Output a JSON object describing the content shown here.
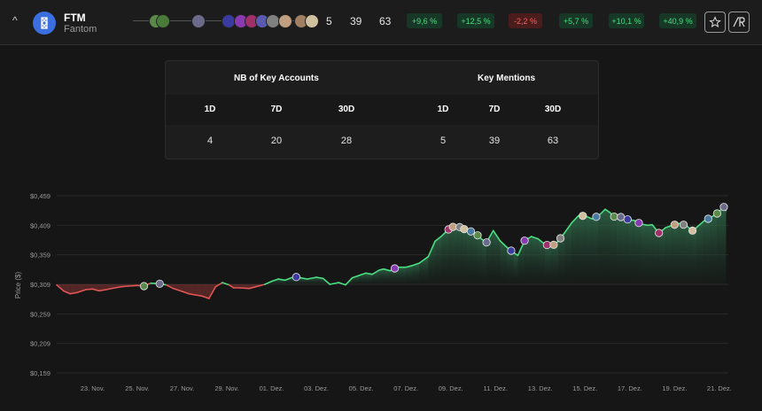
{
  "token": {
    "symbol": "FTM",
    "name": "Fantom"
  },
  "header_stats": {
    "key_accounts_30d": "5",
    "mentions_7d": "39",
    "mentions_30d": "63"
  },
  "price_changes": [
    {
      "value": "+9,6 %",
      "direction": "up"
    },
    {
      "value": "+12,5 %",
      "direction": "up"
    },
    {
      "value": "-2,2 %",
      "direction": "down"
    },
    {
      "value": "+5,7 %",
      "direction": "up"
    },
    {
      "value": "+10,1 %",
      "direction": "up"
    },
    {
      "value": "+40,9 %",
      "direction": "up"
    }
  ],
  "buttons": {
    "favorite_icon": "star-icon",
    "brand_icon": "ar-logo-icon"
  },
  "table": {
    "key_accounts": {
      "title": "NB of Key Accounts",
      "cols": [
        "1D",
        "7D",
        "30D"
      ],
      "vals": [
        "4",
        "20",
        "28"
      ]
    },
    "mentions": {
      "title": "Key Mentions",
      "cols": [
        "1D",
        "7D",
        "30D"
      ],
      "vals": [
        "5",
        "39",
        "63"
      ]
    }
  },
  "colors": {
    "up": "#4ade80",
    "down": "#e05555",
    "accent": "#3b6fe0"
  },
  "chart_data": {
    "type": "line",
    "ylabel": "Price ($)",
    "yticks": [
      "$0,459",
      "$0,409",
      "$0,359",
      "$0,309",
      "$0,259",
      "$0,209",
      "$0,159"
    ],
    "ytick_values": [
      0.459,
      0.409,
      0.359,
      0.309,
      0.259,
      0.209,
      0.159
    ],
    "ylim": [
      0.159,
      0.459
    ],
    "xticks": [
      "23. Nov.",
      "25. Nov.",
      "27. Nov.",
      "29. Nov.",
      "01. Dez.",
      "03. Dez.",
      "05. Dez.",
      "07. Dez.",
      "09. Dez.",
      "11. Dez.",
      "13. Dez.",
      "15. Dez.",
      "17. Dez.",
      "19. Dez.",
      "21. Dez."
    ],
    "baseline": 0.309,
    "grid": true,
    "series": [
      {
        "x": [
          21.4,
          21.7,
          22.0,
          22.3,
          22.7,
          23.0,
          23.3,
          23.6,
          24.0,
          24.3,
          24.6,
          25.0,
          25.3,
          25.6,
          26.0,
          26.3,
          26.6,
          27.0,
          27.3,
          27.6,
          27.9,
          28.2,
          28.5,
          28.8,
          29.1,
          29.3,
          29.6,
          30.0,
          30.3,
          30.7,
          31.0,
          31.3,
          31.6,
          32.0,
          32.3,
          32.6,
          33.0,
          33.3,
          33.6,
          34.0,
          34.3,
          34.6,
          34.9,
          35.2,
          35.5,
          35.8,
          36.0,
          36.3,
          36.6,
          37.0,
          37.3,
          37.6,
          38.0,
          38.3,
          38.6,
          38.9,
          39.0,
          39.3,
          39.5,
          39.7,
          40.0,
          40.2,
          40.4,
          40.6,
          40.9,
          41.2,
          41.5,
          41.8,
          42.0,
          42.3,
          42.6,
          42.9,
          43.2,
          43.5,
          43.8,
          44.1,
          44.4,
          44.7,
          45.0,
          45.3,
          45.6,
          45.9,
          46.1,
          46.4,
          46.6,
          46.9,
          47.2,
          47.5,
          47.8,
          48.0,
          48.3,
          48.6,
          48.9,
          49.2,
          49.5,
          49.8,
          50.0,
          50.3,
          50.6,
          50.9,
          51.2,
          51.3
        ],
        "y": [
          0.308,
          0.298,
          0.293,
          0.295,
          0.3,
          0.301,
          0.298,
          0.3,
          0.303,
          0.305,
          0.306,
          0.307,
          0.306,
          0.311,
          0.31,
          0.308,
          0.302,
          0.297,
          0.293,
          0.291,
          0.289,
          0.285,
          0.305,
          0.312,
          0.308,
          0.303,
          0.303,
          0.302,
          0.305,
          0.309,
          0.314,
          0.318,
          0.316,
          0.322,
          0.32,
          0.318,
          0.321,
          0.319,
          0.309,
          0.312,
          0.308,
          0.32,
          0.324,
          0.328,
          0.326,
          0.333,
          0.335,
          0.332,
          0.338,
          0.338,
          0.341,
          0.345,
          0.356,
          0.382,
          0.391,
          0.402,
          0.406,
          0.407,
          0.405,
          0.4,
          0.398,
          0.392,
          0.385,
          0.38,
          0.4,
          0.383,
          0.372,
          0.363,
          0.358,
          0.383,
          0.39,
          0.386,
          0.377,
          0.373,
          0.382,
          0.397,
          0.413,
          0.425,
          0.425,
          0.42,
          0.425,
          0.436,
          0.431,
          0.42,
          0.423,
          0.419,
          0.417,
          0.411,
          0.409,
          0.41,
          0.396,
          0.405,
          0.409,
          0.412,
          0.409,
          0.4,
          0.406,
          0.416,
          0.422,
          0.429,
          0.44,
          0.434
        ]
      }
    ],
    "avatar_events_x": [
      25.3,
      26.0,
      32.1,
      36.5,
      38.9,
      39.1,
      39.4,
      39.6,
      39.9,
      40.2,
      40.6,
      41.7,
      42.3,
      43.3,
      43.6,
      43.9,
      44.9,
      45.5,
      46.3,
      46.6,
      46.9,
      47.4,
      48.3,
      49.0,
      49.4,
      49.8,
      50.5,
      50.9,
      51.2
    ],
    "start_x": 21.4,
    "end_x": 51.4,
    "xtick_start": 23,
    "xtick_step": 2
  }
}
